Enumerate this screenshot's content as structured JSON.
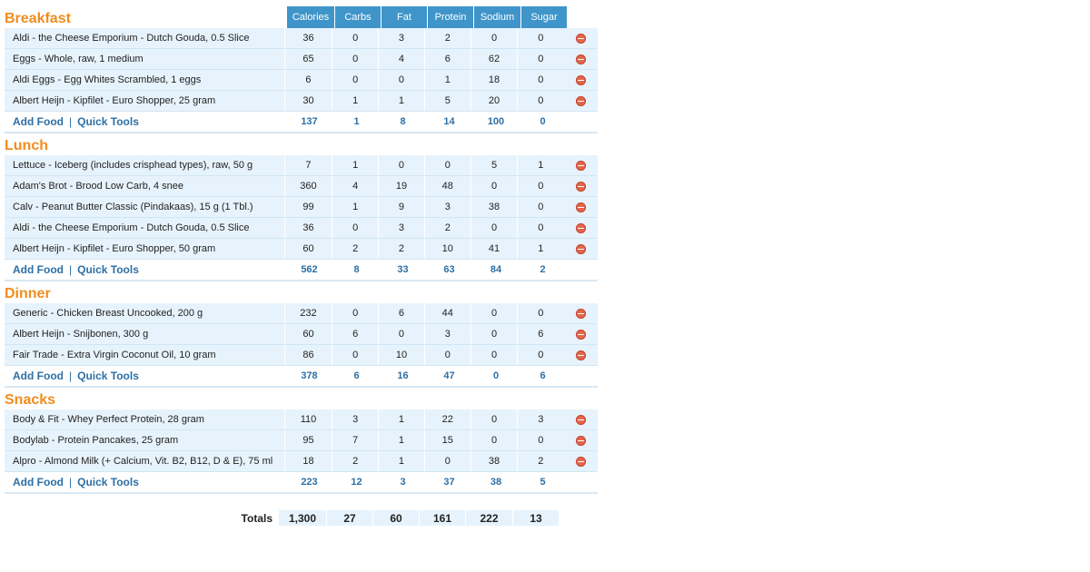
{
  "columns": [
    "Calories",
    "Carbs",
    "Fat",
    "Protein",
    "Sodium",
    "Sugar"
  ],
  "add_food_label": "Add Food",
  "separator": "|",
  "quick_tools_label": "Quick Tools",
  "meals": [
    {
      "name": "Breakfast",
      "items": [
        {
          "name": "Aldi - the Cheese Emporium - Dutch Gouda, 0.5 Slice",
          "values": [
            "36",
            "0",
            "3",
            "2",
            "0",
            "0"
          ]
        },
        {
          "name": "Eggs - Whole, raw, 1 medium",
          "values": [
            "65",
            "0",
            "4",
            "6",
            "62",
            "0"
          ]
        },
        {
          "name": "Aldi Eggs - Egg Whites Scrambled, 1 eggs",
          "values": [
            "6",
            "0",
            "0",
            "1",
            "18",
            "0"
          ]
        },
        {
          "name": "Albert Heijn - Kipfilet - Euro Shopper, 25 gram",
          "values": [
            "30",
            "1",
            "1",
            "5",
            "20",
            "0"
          ]
        }
      ],
      "totals": [
        "137",
        "1",
        "8",
        "14",
        "100",
        "0"
      ]
    },
    {
      "name": "Lunch",
      "items": [
        {
          "name": "Lettuce - Iceberg (includes crisphead types), raw, 50 g",
          "values": [
            "7",
            "1",
            "0",
            "0",
            "5",
            "1"
          ]
        },
        {
          "name": "Adam's Brot - Brood Low Carb, 4 snee",
          "values": [
            "360",
            "4",
            "19",
            "48",
            "0",
            "0"
          ]
        },
        {
          "name": "Calv - Peanut Butter Classic (Pindakaas), 15 g (1 Tbl.)",
          "values": [
            "99",
            "1",
            "9",
            "3",
            "38",
            "0"
          ]
        },
        {
          "name": "Aldi - the Cheese Emporium - Dutch Gouda, 0.5 Slice",
          "values": [
            "36",
            "0",
            "3",
            "2",
            "0",
            "0"
          ]
        },
        {
          "name": "Albert Heijn - Kipfilet - Euro Shopper, 50 gram",
          "values": [
            "60",
            "2",
            "2",
            "10",
            "41",
            "1"
          ]
        }
      ],
      "totals": [
        "562",
        "8",
        "33",
        "63",
        "84",
        "2"
      ]
    },
    {
      "name": "Dinner",
      "items": [
        {
          "name": "Generic - Chicken Breast Uncooked, 200 g",
          "values": [
            "232",
            "0",
            "6",
            "44",
            "0",
            "0"
          ]
        },
        {
          "name": "Albert Heijn - Snijbonen, 300 g",
          "values": [
            "60",
            "6",
            "0",
            "3",
            "0",
            "6"
          ]
        },
        {
          "name": "Fair Trade - Extra Virgin Coconut Oil, 10 gram",
          "values": [
            "86",
            "0",
            "10",
            "0",
            "0",
            "0"
          ]
        }
      ],
      "totals": [
        "378",
        "6",
        "16",
        "47",
        "0",
        "6"
      ]
    },
    {
      "name": "Snacks",
      "items": [
        {
          "name": "Body & Fit - Whey Perfect Protein, 28 gram",
          "values": [
            "110",
            "3",
            "1",
            "22",
            "0",
            "3"
          ]
        },
        {
          "name": "Bodylab - Protein Pancakes, 25 gram",
          "values": [
            "95",
            "7",
            "1",
            "15",
            "0",
            "0"
          ]
        },
        {
          "name": "Alpro - Almond Milk (+ Calcium, Vit. B2, B12, D & E), 75 ml",
          "values": [
            "18",
            "2",
            "1",
            "0",
            "38",
            "2"
          ]
        }
      ],
      "totals": [
        "223",
        "12",
        "3",
        "37",
        "38",
        "5"
      ]
    }
  ],
  "grand_totals": {
    "label": "Totals",
    "values": [
      "1,300",
      "27",
      "60",
      "161",
      "222",
      "13"
    ]
  },
  "colors": {
    "meal_title": "#f08d1e",
    "header_bg": "#3f95c9",
    "row_bg": "#e7f3fc",
    "link": "#2d6fa5",
    "remove_icon": "#e2664d"
  }
}
